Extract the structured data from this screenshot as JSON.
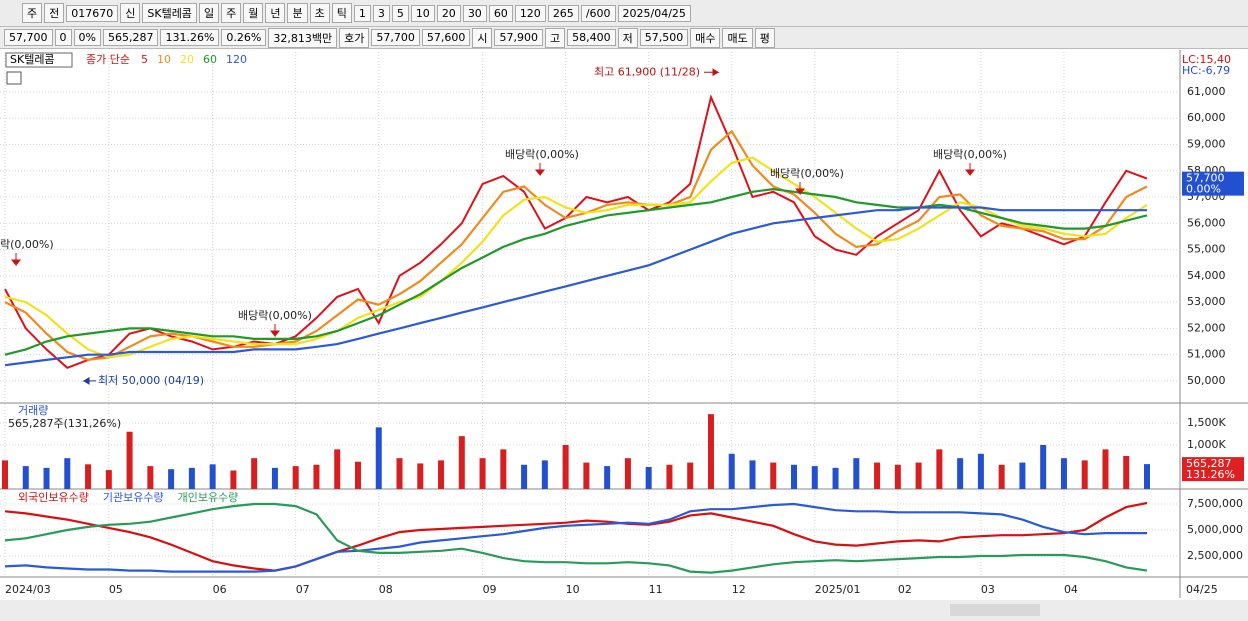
{
  "toolbar": {
    "items": [
      "주",
      "전",
      "017670",
      "신",
      "SK텔레콤",
      "일",
      "주",
      "월",
      "년",
      "분",
      "초",
      "틱",
      "1",
      "3",
      "5",
      "10",
      "20",
      "30",
      "60",
      "120",
      "265",
      "/600",
      "2025/04/25"
    ],
    "quote": [
      "57,700",
      "0",
      "0%",
      "565,287",
      "131.26%",
      "0.26%",
      "32,813백만",
      "호가",
      "57,700",
      "57,600",
      "시",
      "57,900",
      "고",
      "58,400",
      "저",
      "57,500",
      "매수",
      "매도",
      "평"
    ]
  },
  "chart_data": [
    {
      "type": "line",
      "title": "SK텔레콤",
      "subtitle": "종가 단순",
      "lc": "LC:15,40",
      "hc": "HC:-6,79",
      "categories": [
        "2024/03",
        null,
        null,
        null,
        null,
        "05",
        null,
        null,
        null,
        null,
        "06",
        null,
        null,
        null,
        "07",
        null,
        null,
        null,
        "08",
        null,
        null,
        null,
        null,
        "09",
        null,
        null,
        null,
        "10",
        null,
        null,
        null,
        "11",
        null,
        null,
        null,
        "12",
        null,
        null,
        null,
        "2025/01",
        null,
        null,
        null,
        "02",
        null,
        null,
        null,
        "03",
        null,
        null,
        null,
        "04",
        null,
        null,
        null,
        null
      ],
      "ylim": [
        49160,
        62520
      ],
      "yticks": [
        {
          "value": 50000,
          "label": "50,000"
        },
        {
          "value": 51000,
          "label": "51,000"
        },
        {
          "value": 52000,
          "label": "52,000"
        },
        {
          "value": 53000,
          "label": "53,000"
        },
        {
          "value": 54000,
          "label": "54,000"
        },
        {
          "value": 55000,
          "label": "55,000"
        },
        {
          "value": 56000,
          "label": "56,000"
        },
        {
          "value": 57000,
          "label": "57,000"
        },
        {
          "value": 58000,
          "label": "58,000"
        },
        {
          "value": 59000,
          "label": "59,000"
        },
        {
          "value": 60000,
          "label": "60,000"
        },
        {
          "value": 61000,
          "label": "61,000"
        }
      ],
      "grid": true,
      "series": [
        {
          "name": "5",
          "color": "#e0101a",
          "values": [
            53500,
            52000,
            51200,
            50500,
            50800,
            51000,
            51800,
            52000,
            51700,
            51500,
            51200,
            51300,
            51500,
            51400,
            51700,
            52400,
            53200,
            53500,
            52200,
            54000,
            54500,
            55200,
            56000,
            57500,
            57800,
            57200,
            55800,
            56200,
            57000,
            56800,
            57000,
            56500,
            56800,
            57500,
            60800,
            59000,
            57000,
            57200,
            56800,
            55500,
            55000,
            54800,
            55500,
            56000,
            56500,
            58000,
            56500,
            55500,
            56000,
            55800,
            55500,
            55200,
            55500,
            56800,
            58000,
            57700
          ]
        },
        {
          "name": "10",
          "color": "#f08a1c",
          "values": [
            53000,
            52600,
            51800,
            51100,
            50800,
            50900,
            51300,
            51700,
            51800,
            51700,
            51500,
            51300,
            51300,
            51400,
            51500,
            51900,
            52500,
            53100,
            52900,
            53300,
            53800,
            54500,
            55200,
            56200,
            57200,
            57400,
            56700,
            56200,
            56400,
            56700,
            56800,
            56700,
            56700,
            57000,
            58800,
            59500,
            58200,
            57400,
            57100,
            56400,
            55600,
            55100,
            55200,
            55700,
            56100,
            57000,
            57100,
            56300,
            55900,
            55800,
            55700,
            55400,
            55400,
            55900,
            57000,
            57400
          ]
        },
        {
          "name": "20",
          "color": "#f2e21a",
          "values": [
            53200,
            53000,
            52500,
            51800,
            51200,
            50900,
            51000,
            51300,
            51600,
            51700,
            51600,
            51500,
            51400,
            51400,
            51400,
            51600,
            51900,
            52400,
            52700,
            53000,
            53200,
            53800,
            54500,
            55300,
            56300,
            56900,
            57000,
            56600,
            56400,
            56500,
            56700,
            56700,
            56700,
            56800,
            57600,
            58300,
            58500,
            58000,
            57500,
            57000,
            56400,
            55800,
            55300,
            55400,
            55800,
            56300,
            56800,
            56600,
            56200,
            55900,
            55800,
            55600,
            55500,
            55600,
            56200,
            56700
          ]
        },
        {
          "name": "60",
          "color": "#1f9a2a",
          "values": [
            51000,
            51200,
            51500,
            51700,
            51800,
            51900,
            52000,
            52000,
            51900,
            51800,
            51700,
            51700,
            51600,
            51600,
            51600,
            51700,
            51900,
            52200,
            52500,
            52900,
            53300,
            53800,
            54300,
            54700,
            55100,
            55400,
            55600,
            55900,
            56100,
            56300,
            56400,
            56500,
            56600,
            56700,
            56800,
            57000,
            57200,
            57300,
            57200,
            57100,
            57000,
            56800,
            56700,
            56600,
            56600,
            56700,
            56600,
            56400,
            56200,
            56000,
            55900,
            55800,
            55800,
            55900,
            56100,
            56300
          ]
        },
        {
          "name": "120",
          "color": "#2a5ad8",
          "values": [
            50600,
            50700,
            50800,
            50900,
            51000,
            51000,
            51100,
            51100,
            51100,
            51100,
            51100,
            51100,
            51200,
            51200,
            51200,
            51300,
            51400,
            51600,
            51800,
            52000,
            52200,
            52400,
            52600,
            52800,
            53000,
            53200,
            53400,
            53600,
            53800,
            54000,
            54200,
            54400,
            54700,
            55000,
            55300,
            55600,
            55800,
            56000,
            56100,
            56200,
            56300,
            56400,
            56500,
            56500,
            56600,
            56600,
            56600,
            56600,
            56500,
            56500,
            56500,
            56500,
            56500,
            56500,
            56500,
            56500
          ]
        }
      ],
      "annotations": [
        {
          "text": "최고 61,900 (11/28)",
          "value": 61900
        },
        {
          "text": "최저 50,000 (04/19)",
          "value": 50000
        }
      ],
      "markers": [
        "락(0,00%)",
        "배당락(0,00%)",
        "배당락(0,00%)",
        "배당락(0,00%)",
        "배당락(0,00%)"
      ],
      "last_label": {
        "value": 57700,
        "label": "57,700"
      },
      "change_label": "0.00%"
    },
    {
      "type": "bar",
      "title": "거래량",
      "subtitle": "565,287주(131,26%)",
      "ylim": [
        0,
        1930000
      ],
      "yticks": [
        {
          "value": 1000000,
          "label": "1,000K"
        },
        {
          "value": 1500000,
          "label": "1,500K"
        }
      ],
      "up_color": "#d81e1e",
      "down_color": "#2350d0",
      "values": [
        650000,
        520000,
        480000,
        700000,
        560000,
        430000,
        1300000,
        520000,
        450000,
        480000,
        560000,
        420000,
        700000,
        480000,
        520000,
        550000,
        900000,
        620000,
        1400000,
        700000,
        580000,
        650000,
        1200000,
        700000,
        900000,
        550000,
        650000,
        1000000,
        600000,
        520000,
        700000,
        500000,
        550000,
        600000,
        1700000,
        800000,
        650000,
        600000,
        550000,
        520000,
        480000,
        700000,
        600000,
        550000,
        600000,
        900000,
        700000,
        800000,
        550000,
        600000,
        1000000,
        700000,
        650000,
        900000,
        750000,
        565287
      ],
      "last_label": {
        "value": 565287,
        "label": "565,287"
      },
      "ratio_label": "131.26%"
    },
    {
      "type": "line",
      "ylim": [
        577000,
        8846000
      ],
      "yticks": [
        {
          "value": 2500000,
          "label": "2,500,000"
        },
        {
          "value": 5000000,
          "label": "5,000,000"
        },
        {
          "value": 7500000,
          "label": "7,500,000"
        }
      ],
      "x_end_label": "04/25",
      "series": [
        {
          "name": "외국인보유수량",
          "color": "#d81010",
          "values": [
            6800000,
            6600000,
            6300000,
            6000000,
            5600000,
            5200000,
            4800000,
            4300000,
            3600000,
            2800000,
            2000000,
            1600000,
            1300000,
            1100000,
            1500000,
            2200000,
            2900000,
            3500000,
            4200000,
            4800000,
            5000000,
            5100000,
            5200000,
            5300000,
            5400000,
            5500000,
            5600000,
            5700000,
            5900000,
            5800000,
            5600000,
            5500000,
            5800000,
            6400000,
            6600000,
            6200000,
            5800000,
            5400000,
            4600000,
            3900000,
            3600000,
            3500000,
            3700000,
            3900000,
            4000000,
            3900000,
            4300000,
            4400000,
            4500000,
            4500000,
            4600000,
            4700000,
            5000000,
            6200000,
            7200000,
            7600000
          ]
        },
        {
          "name": "기관보유수량",
          "color": "#2a5ad8",
          "values": [
            1500000,
            1600000,
            1400000,
            1300000,
            1200000,
            1200000,
            1100000,
            1100000,
            1000000,
            1000000,
            1000000,
            1000000,
            1000000,
            1100000,
            1500000,
            2200000,
            2900000,
            3000000,
            3200000,
            3400000,
            3800000,
            4000000,
            4200000,
            4400000,
            4600000,
            4900000,
            5200000,
            5400000,
            5500000,
            5600000,
            5700000,
            5600000,
            6000000,
            6800000,
            7000000,
            7000000,
            7200000,
            7400000,
            7500000,
            7200000,
            6900000,
            6800000,
            6800000,
            6700000,
            6700000,
            6700000,
            6700000,
            6600000,
            6500000,
            6000000,
            5300000,
            4800000,
            4600000,
            4700000,
            4700000,
            4700000
          ]
        },
        {
          "name": "개인보유수량",
          "color": "#2a9a5a",
          "values": [
            4000000,
            4200000,
            4600000,
            5000000,
            5300000,
            5500000,
            5600000,
            5800000,
            6200000,
            6600000,
            7000000,
            7300000,
            7500000,
            7500000,
            7300000,
            6500000,
            4000000,
            3000000,
            2800000,
            2800000,
            2900000,
            3000000,
            3200000,
            2800000,
            2300000,
            2000000,
            1900000,
            1900000,
            1800000,
            1800000,
            1900000,
            1800000,
            1600000,
            1000000,
            900000,
            1100000,
            1400000,
            1700000,
            1900000,
            2000000,
            2100000,
            2000000,
            2100000,
            2200000,
            2300000,
            2400000,
            2400000,
            2500000,
            2500000,
            2600000,
            2600000,
            2600000,
            2400000,
            2000000,
            1400000,
            1100000
          ]
        }
      ]
    }
  ]
}
